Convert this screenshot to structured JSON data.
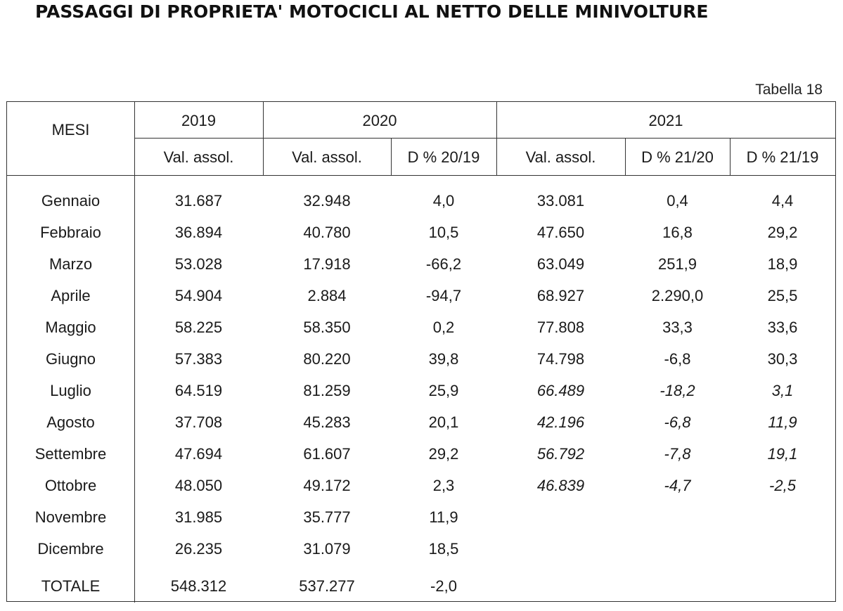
{
  "title": "PASSAGGI DI PROPRIETA' MOTOCICLI AL NETTO DELLE MINIVOLTURE",
  "table_ref": "Tabella 18",
  "header": {
    "mesi": "MESI",
    "y2019": "2019",
    "y2020": "2020",
    "y2021": "2021",
    "sub": [
      "Val. assol.",
      "Val. assol.",
      "D % 20/19",
      "Val. assol.",
      "D % 21/20",
      "D % 21/19"
    ]
  },
  "rows": [
    {
      "mese": "Gennaio",
      "v2019": "31.687",
      "v2020": "32.948",
      "d2019": "4,0",
      "v2021": "33.081",
      "d2120": "0,4",
      "d2119": "4,4",
      "italic2021": false
    },
    {
      "mese": "Febbraio",
      "v2019": "36.894",
      "v2020": "40.780",
      "d2019": "10,5",
      "v2021": "47.650",
      "d2120": "16,8",
      "d2119": "29,2",
      "italic2021": false
    },
    {
      "mese": "Marzo",
      "v2019": "53.028",
      "v2020": "17.918",
      "d2019": "-66,2",
      "v2021": "63.049",
      "d2120": "251,9",
      "d2119": "18,9",
      "italic2021": false
    },
    {
      "mese": "Aprile",
      "v2019": "54.904",
      "v2020": "2.884",
      "d2019": "-94,7",
      "v2021": "68.927",
      "d2120": "2.290,0",
      "d2119": "25,5",
      "italic2021": false
    },
    {
      "mese": "Maggio",
      "v2019": "58.225",
      "v2020": "58.350",
      "d2019": "0,2",
      "v2021": "77.808",
      "d2120": "33,3",
      "d2119": "33,6",
      "italic2021": false
    },
    {
      "mese": "Giugno",
      "v2019": "57.383",
      "v2020": "80.220",
      "d2019": "39,8",
      "v2021": "74.798",
      "d2120": "-6,8",
      "d2119": "30,3",
      "italic2021": false
    },
    {
      "mese": "Luglio",
      "v2019": "64.519",
      "v2020": "81.259",
      "d2019": "25,9",
      "v2021": "66.489",
      "d2120": "-18,2",
      "d2119": "3,1",
      "italic2021": true
    },
    {
      "mese": "Agosto",
      "v2019": "37.708",
      "v2020": "45.283",
      "d2019": "20,1",
      "v2021": "42.196",
      "d2120": "-6,8",
      "d2119": "11,9",
      "italic2021": true
    },
    {
      "mese": "Settembre",
      "v2019": "47.694",
      "v2020": "61.607",
      "d2019": "29,2",
      "v2021": "56.792",
      "d2120": "-7,8",
      "d2119": "19,1",
      "italic2021": true
    },
    {
      "mese": "Ottobre",
      "v2019": "48.050",
      "v2020": "49.172",
      "d2019": "2,3",
      "v2021": "46.839",
      "d2120": "-4,7",
      "d2119": "-2,5",
      "italic2021": true
    },
    {
      "mese": "Novembre",
      "v2019": "31.985",
      "v2020": "35.777",
      "d2019": "11,9",
      "v2021": "",
      "d2120": "",
      "d2119": "",
      "italic2021": false
    },
    {
      "mese": "Dicembre",
      "v2019": "26.235",
      "v2020": "31.079",
      "d2019": "18,5",
      "v2021": "",
      "d2120": "",
      "d2119": "",
      "italic2021": false
    }
  ],
  "totale": {
    "mese": "TOTALE",
    "v2019": "548.312",
    "v2020": "537.277",
    "d2019": "-2,0"
  }
}
